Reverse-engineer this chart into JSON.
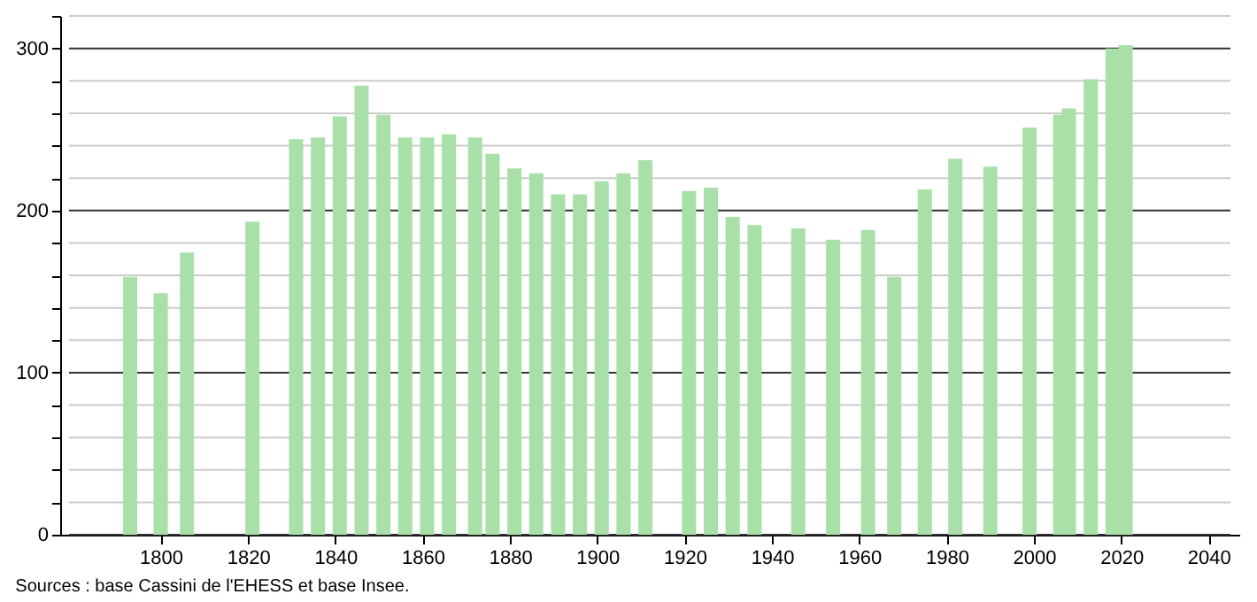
{
  "chart_data": {
    "type": "bar",
    "x": [
      1793,
      1800,
      1806,
      1821,
      1831,
      1836,
      1841,
      1846,
      1851,
      1856,
      1861,
      1866,
      1872,
      1876,
      1881,
      1886,
      1891,
      1896,
      1901,
      1906,
      1911,
      1921,
      1926,
      1931,
      1936,
      1946,
      1954,
      1962,
      1968,
      1975,
      1982,
      1990,
      1999,
      2006,
      2008,
      2013,
      2018,
      2021
    ],
    "values": [
      159,
      149,
      174,
      193,
      244,
      245,
      258,
      277,
      259,
      245,
      245,
      247,
      245,
      235,
      226,
      223,
      210,
      210,
      218,
      223,
      231,
      212,
      214,
      196,
      191,
      189,
      182,
      188,
      159,
      213,
      232,
      227,
      251,
      259,
      263,
      281,
      300,
      302
    ],
    "color": "#a8e0a8",
    "xlim": [
      1779,
      2045
    ],
    "xticks": [
      1800,
      1820,
      1840,
      1860,
      1880,
      1900,
      1920,
      1940,
      1960,
      1980,
      2000,
      2020,
      2040
    ],
    "ylim": [
      0,
      320
    ],
    "yticks": [
      0,
      {
        "value": 20,
        "label": null
      },
      {
        "value": 40,
        "label": null
      },
      {
        "value": 60,
        "label": null
      },
      {
        "value": 80,
        "label": null
      },
      100,
      {
        "value": 120,
        "label": null
      },
      {
        "value": 140,
        "label": null
      },
      {
        "value": 160,
        "label": null
      },
      {
        "value": 180,
        "label": null
      },
      200,
      {
        "value": 220,
        "label": null
      },
      {
        "value": 240,
        "label": null
      },
      {
        "value": 260,
        "label": null
      },
      {
        "value": 280,
        "label": null
      },
      300,
      {
        "value": 320,
        "label": null
      }
    ],
    "grid": "y",
    "annotations": [
      "Sources : base Cassini de l'EHESS et base Insee."
    ]
  }
}
